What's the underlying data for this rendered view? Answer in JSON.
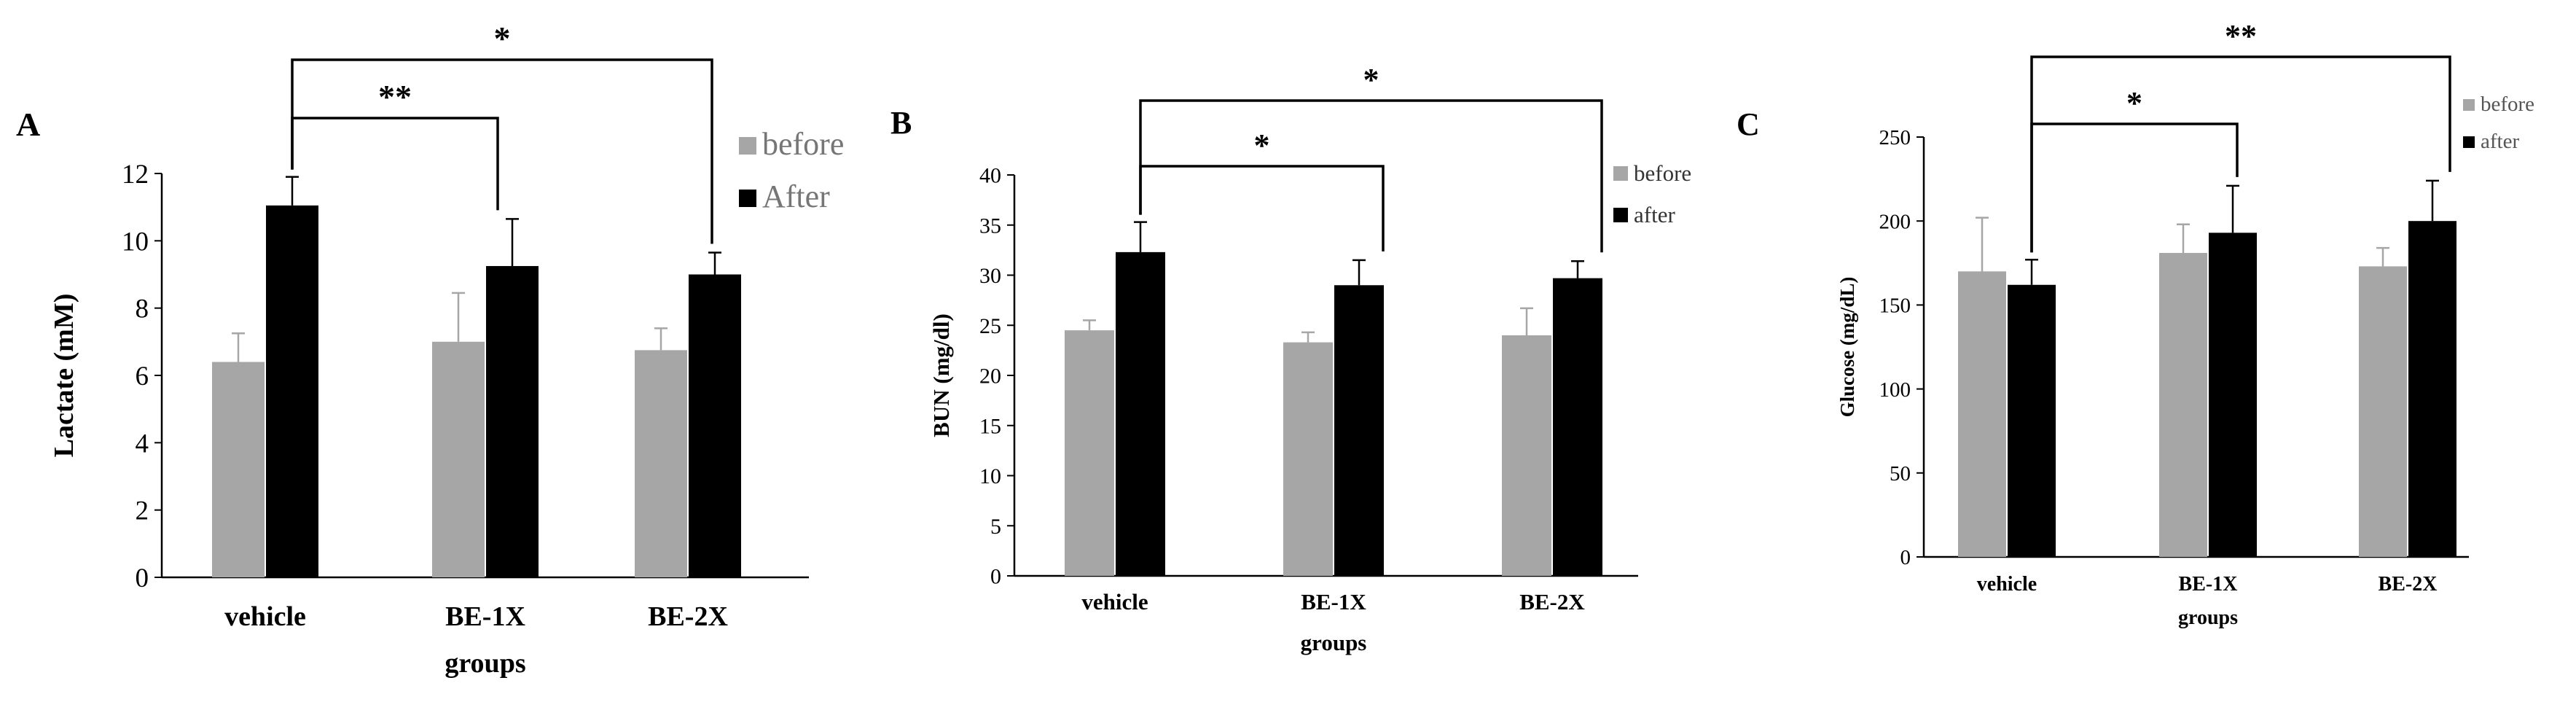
{
  "colors": {
    "before": "#a6a6a6",
    "after": "#000000",
    "axis": "#000000"
  },
  "chart_data": [
    {
      "type": "bar",
      "panel_label": "A",
      "ylabel": "Lactate (mM)",
      "xlabel": "groups",
      "ylim": [
        0,
        12
      ],
      "yticks": [
        0,
        2,
        4,
        6,
        8,
        10,
        12
      ],
      "categories": [
        "vehicle",
        "BE-1X",
        "BE-2X"
      ],
      "series": [
        {
          "name": "before",
          "values": [
            6.4,
            7.0,
            6.75
          ],
          "errors": [
            0.85,
            1.45,
            0.65
          ]
        },
        {
          "name": "After",
          "values": [
            11.05,
            9.25,
            9.0
          ],
          "errors": [
            0.85,
            1.4,
            0.65
          ]
        }
      ],
      "significance": [
        {
          "from": 0,
          "to": 1,
          "label": "**"
        },
        {
          "from": 0,
          "to": 2,
          "label": "*"
        }
      ]
    },
    {
      "type": "bar",
      "panel_label": "B",
      "ylabel": "BUN (mg/dl)",
      "xlabel": "groups",
      "ylim": [
        0,
        40
      ],
      "yticks": [
        0,
        5,
        10,
        15,
        20,
        25,
        30,
        35,
        40
      ],
      "categories": [
        "vehicle",
        "BE-1X",
        "BE-2X"
      ],
      "series": [
        {
          "name": "before",
          "values": [
            24.5,
            23.3,
            24.0
          ],
          "errors": [
            1.0,
            1.0,
            2.7
          ]
        },
        {
          "name": "after",
          "values": [
            32.3,
            29.0,
            29.7
          ],
          "errors": [
            3.0,
            2.5,
            1.7
          ]
        }
      ],
      "significance": [
        {
          "from": 0,
          "to": 1,
          "label": "*"
        },
        {
          "from": 0,
          "to": 2,
          "label": "*"
        }
      ]
    },
    {
      "type": "bar",
      "panel_label": "C",
      "ylabel": "Glucose (mg/dL)",
      "xlabel": "groups",
      "ylim": [
        0,
        250
      ],
      "yticks": [
        0,
        50,
        100,
        150,
        200,
        250
      ],
      "categories": [
        "vehicle",
        "BE-1X",
        "BE-2X"
      ],
      "series": [
        {
          "name": "before",
          "values": [
            170,
            181,
            173
          ],
          "errors": [
            32,
            17,
            11
          ]
        },
        {
          "name": "after",
          "values": [
            162,
            193,
            200
          ],
          "errors": [
            15,
            28,
            24
          ]
        }
      ],
      "significance": [
        {
          "from": 0,
          "to": 1,
          "label": "*"
        },
        {
          "from": 0,
          "to": 2,
          "label": "**"
        }
      ]
    }
  ]
}
